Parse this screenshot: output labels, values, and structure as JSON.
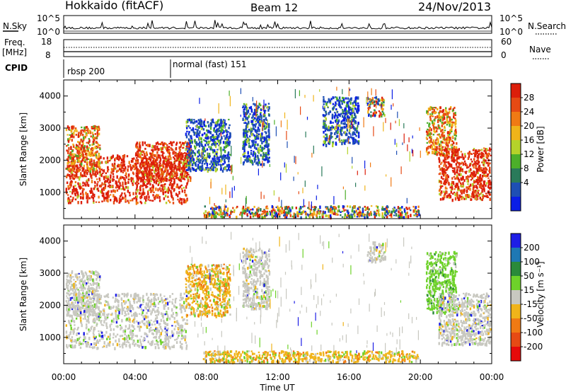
{
  "header": {
    "station": "Hokkaido (fitACF)",
    "beam": "Beam 12",
    "date": "24/Nov/2013"
  },
  "top_panels": {
    "nsky_label": "N.Sky",
    "nsky_ticks": [
      "10^5",
      "10^0"
    ],
    "nsearch_label": "N.Search",
    "nsearch_ticks": [
      "10^5",
      "10^0"
    ],
    "freq_label_line1": "Freq.",
    "freq_label_line2": "[MHz]",
    "freq_ticks": [
      "18",
      "8"
    ],
    "nave_label": "Nave",
    "nave_ticks": [
      "60",
      "0"
    ],
    "cpid_label": "CPID",
    "cpid_segments": [
      {
        "label": "rbsp 200",
        "start_hour": 0
      },
      {
        "label": "normal (fast) 151",
        "start_hour": 6
      }
    ]
  },
  "time_axis": {
    "label": "Time UT",
    "ticks": [
      "00:00",
      "04:00",
      "08:00",
      "12:00",
      "16:00",
      "20:00",
      "00:00"
    ],
    "tick_hours": [
      0,
      4,
      8,
      12,
      16,
      20,
      24
    ]
  },
  "chart_data": [
    {
      "type": "heatmap",
      "name": "power",
      "ylabel": "Slant Range [km]",
      "ylim": [
        180,
        4500
      ],
      "yticks": [
        1000,
        2000,
        3000,
        4000
      ],
      "xlim_hours": [
        0,
        24
      ],
      "colorbar": {
        "label": "Power [dB]",
        "ticks": [
          "4",
          "8",
          "12",
          "16",
          "20",
          "24",
          "28"
        ],
        "colors": [
          "#0a1ee6",
          "#1e4fb4",
          "#2a7a5a",
          "#4caf2a",
          "#b5d22a",
          "#f0b41a",
          "#f07a14",
          "#e64a14",
          "#dc1e0a"
        ]
      },
      "scatter_regions": [
        {
          "h0": 0.1,
          "h1": 6.9,
          "r0": 700,
          "r1": 2200,
          "v": "high"
        },
        {
          "h0": 0.1,
          "h1": 2.0,
          "r0": 1700,
          "r1": 3100,
          "v": "mid"
        },
        {
          "h0": 4.0,
          "h1": 7.1,
          "r0": 1400,
          "r1": 2600,
          "v": "high"
        },
        {
          "h0": 6.8,
          "h1": 9.3,
          "r0": 1700,
          "r1": 3300,
          "v": "low"
        },
        {
          "h0": 7.8,
          "h1": 19.9,
          "r0": 250,
          "r1": 600,
          "v": "mix"
        },
        {
          "h0": 10.0,
          "h1": 11.5,
          "r0": 1900,
          "r1": 3800,
          "v": "low"
        },
        {
          "h0": 14.5,
          "h1": 16.5,
          "r0": 2500,
          "r1": 4000,
          "v": "low"
        },
        {
          "h0": 17.0,
          "h1": 18.0,
          "r0": 3400,
          "r1": 4000,
          "v": "mix"
        },
        {
          "h0": 20.3,
          "h1": 22.0,
          "r0": 2200,
          "r1": 3700,
          "v": "mid"
        },
        {
          "h0": 21.0,
          "h1": 23.9,
          "r0": 800,
          "r1": 2400,
          "v": "high"
        }
      ]
    },
    {
      "type": "heatmap",
      "name": "velocity",
      "ylabel": "Slant Range [km]",
      "ylim": [
        180,
        4500
      ],
      "yticks": [
        1000,
        2000,
        3000,
        4000
      ],
      "xlim_hours": [
        0,
        24
      ],
      "colorbar": {
        "label": "Velocity [m s⁻¹]",
        "ticks": [
          "200",
          "100",
          "50",
          "15",
          "-15",
          "-50",
          "-100",
          "-200"
        ],
        "colors": [
          "#1e1ee6",
          "#1e78b4",
          "#2a8a3a",
          "#6ed22a",
          "#c8c8c0",
          "#f0b41a",
          "#f07a14",
          "#e64a14",
          "#e60a0a"
        ]
      },
      "scatter_regions": [
        {
          "h0": 0.1,
          "h1": 6.9,
          "r0": 700,
          "r1": 2400,
          "v": "gray"
        },
        {
          "h0": 0.1,
          "h1": 2.0,
          "r0": 1700,
          "r1": 3100,
          "v": "gray"
        },
        {
          "h0": 6.8,
          "h1": 9.3,
          "r0": 1700,
          "r1": 3300,
          "v": "orange"
        },
        {
          "h0": 7.8,
          "h1": 19.9,
          "r0": 250,
          "r1": 600,
          "v": "orange"
        },
        {
          "h0": 10.0,
          "h1": 11.5,
          "r0": 1900,
          "r1": 3800,
          "v": "gray"
        },
        {
          "h0": 17.0,
          "h1": 18.0,
          "r0": 3400,
          "r1": 4000,
          "v": "gray"
        },
        {
          "h0": 20.3,
          "h1": 22.0,
          "r0": 1800,
          "r1": 3700,
          "v": "green"
        },
        {
          "h0": 21.0,
          "h1": 23.9,
          "r0": 800,
          "r1": 2400,
          "v": "gray"
        }
      ]
    }
  ]
}
